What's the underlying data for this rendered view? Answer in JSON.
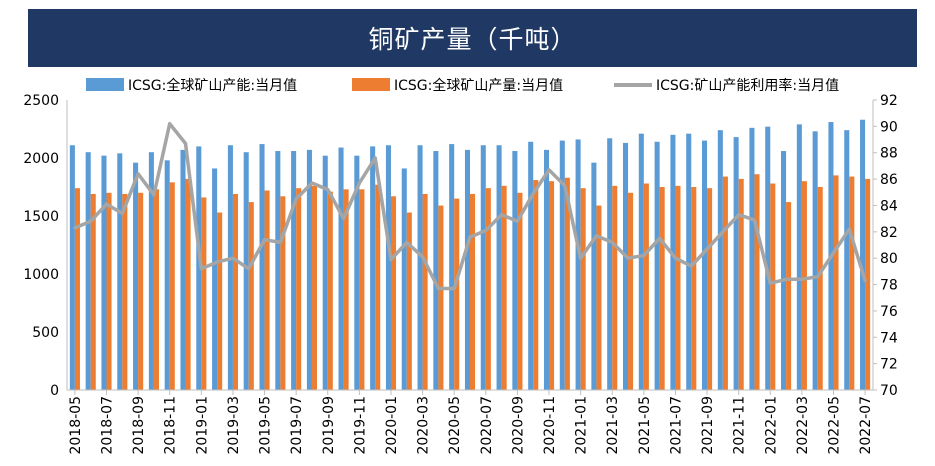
{
  "chart_data": {
    "type": "bar",
    "title": "铜矿产量（千吨）",
    "colors": {
      "capacity": "#5b9bd5",
      "output": "#ed7d31",
      "utilization": "#a5a5a5",
      "title_bg": "#1f3864"
    },
    "categories": [
      "2018-05",
      "2018-06",
      "2018-07",
      "2018-08",
      "2018-09",
      "2018-10",
      "2018-11",
      "2018-12",
      "2019-01",
      "2019-02",
      "2019-03",
      "2019-04",
      "2019-05",
      "2019-06",
      "2019-07",
      "2019-08",
      "2019-09",
      "2019-10",
      "2019-11",
      "2019-12",
      "2020-01",
      "2020-02",
      "2020-03",
      "2020-04",
      "2020-05",
      "2020-06",
      "2020-07",
      "2020-08",
      "2020-09",
      "2020-10",
      "2020-11",
      "2020-12",
      "2021-01",
      "2021-02",
      "2021-03",
      "2021-04",
      "2021-05",
      "2021-06",
      "2021-07",
      "2021-08",
      "2021-09",
      "2021-10",
      "2021-11",
      "2021-12",
      "2022-01",
      "2022-02",
      "2022-03",
      "2022-04",
      "2022-05",
      "2022-06",
      "2022-07"
    ],
    "x_tick_labels": [
      "2018-05",
      "2018-07",
      "2018-09",
      "2018-11",
      "2019-01",
      "2019-03",
      "2019-05",
      "2019-07",
      "2019-09",
      "2019-11",
      "2020-01",
      "2020-03",
      "2020-05",
      "2020-07",
      "2020-09",
      "2020-11",
      "2021-01",
      "2021-03",
      "2021-05",
      "2021-07",
      "2021-09",
      "2021-11",
      "2022-01",
      "2022-03",
      "2022-05",
      "2022-07"
    ],
    "y_left": {
      "min": 0,
      "max": 2500,
      "ticks": [
        "0",
        "500",
        "1000",
        "1500",
        "2000",
        "2500"
      ]
    },
    "y_right": {
      "min": 70,
      "max": 92,
      "ticks": [
        "70",
        "72",
        "74",
        "76",
        "78",
        "80",
        "82",
        "84",
        "86",
        "88",
        "90",
        "92"
      ]
    },
    "legend_position": "top",
    "series": [
      {
        "name": "ICSG:全球矿山产能:当月值",
        "type": "bar",
        "axis": "left",
        "values": [
          2110,
          2050,
          2020,
          2040,
          1960,
          2050,
          1980,
          2070,
          2100,
          1910,
          2110,
          2050,
          2120,
          2060,
          2060,
          2070,
          2020,
          2090,
          2020,
          2100,
          2110,
          1910,
          2110,
          2060,
          2120,
          2070,
          2110,
          2110,
          2060,
          2140,
          2070,
          2150,
          2160,
          1960,
          2170,
          2130,
          2210,
          2140,
          2200,
          2210,
          2150,
          2240,
          2180,
          2260,
          2270,
          2060,
          2290,
          2230,
          2310,
          2240,
          2330
        ]
      },
      {
        "name": "ICSG:全球矿山产量:当月值",
        "type": "bar",
        "axis": "left",
        "values": [
          1740,
          1690,
          1700,
          1690,
          1700,
          1730,
          1790,
          1820,
          1660,
          1530,
          1690,
          1620,
          1720,
          1670,
          1740,
          1760,
          1710,
          1730,
          1730,
          1770,
          1670,
          1530,
          1690,
          1590,
          1650,
          1690,
          1740,
          1760,
          1700,
          1810,
          1800,
          1830,
          1740,
          1590,
          1760,
          1700,
          1780,
          1750,
          1760,
          1750,
          1740,
          1840,
          1820,
          1860,
          1780,
          1620,
          1800,
          1750,
          1850,
          1840,
          1820
        ]
      },
      {
        "name": "ICSG:矿山产能利用率:当月值",
        "type": "line",
        "axis": "right",
        "values": [
          82.3,
          82.8,
          84.1,
          83.4,
          86.4,
          84.8,
          90.2,
          88.7,
          79.2,
          79.7,
          80.0,
          79.2,
          81.4,
          81.2,
          84.5,
          85.7,
          85.2,
          83.0,
          85.7,
          87.6,
          79.9,
          81.2,
          80.1,
          77.7,
          77.7,
          81.6,
          82.1,
          83.3,
          82.8,
          84.9,
          86.7,
          85.5,
          80.0,
          81.7,
          81.2,
          80.0,
          80.2,
          81.5,
          80.0,
          79.4,
          80.7,
          82.0,
          83.3,
          82.9,
          78.1,
          78.4,
          78.4,
          78.6,
          80.4,
          82.2,
          78.3
        ]
      }
    ]
  }
}
